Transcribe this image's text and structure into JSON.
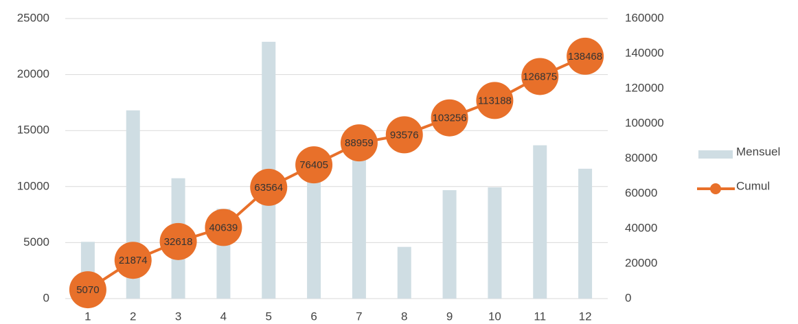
{
  "chart_data": {
    "type": "bar-line",
    "categories": [
      "1",
      "2",
      "3",
      "4",
      "5",
      "6",
      "7",
      "8",
      "9",
      "10",
      "11",
      "12"
    ],
    "series": [
      {
        "name": "Mensuel",
        "type": "bar",
        "color": "#cfdde3",
        "values": [
          5070,
          16804,
          10744,
          8021,
          22925,
          12841,
          12554,
          4617,
          9680,
          9932,
          13687,
          11593
        ]
      },
      {
        "name": "Cumul",
        "type": "line",
        "axis": "y2",
        "color": "#e8702a",
        "values": [
          5070,
          21874,
          32618,
          40639,
          63564,
          76405,
          88959,
          93576,
          103256,
          113188,
          126875,
          138468
        ]
      }
    ],
    "ylim": [
      0,
      25000
    ],
    "yticks": [
      0,
      5000,
      10000,
      15000,
      20000,
      25000
    ],
    "y2lim": [
      0,
      160000
    ],
    "y2ticks": [
      0,
      20000,
      40000,
      60000,
      80000,
      100000,
      120000,
      140000,
      160000
    ],
    "grid": true,
    "legend": "right"
  }
}
